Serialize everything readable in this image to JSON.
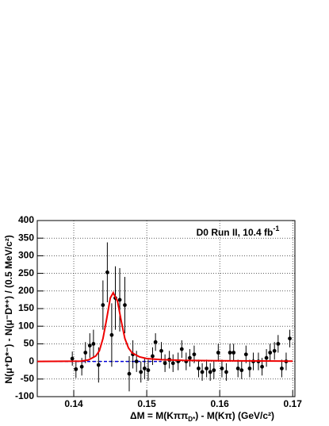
{
  "chart_data": {
    "type": "scatter",
    "annotation": "D0 Run II, 10.4 fb",
    "annotation_sup": "-1",
    "x_label": [
      "ΔM = M(Kππ",
      "D*",
      ") - M(Kπ)   (GeV/c²)"
    ],
    "y_label": "N(μ⁺D*⁻) - N(μ⁻D*⁺)  / (0.5 MeV/c²)",
    "xlim": [
      0.135,
      0.1703
    ],
    "ylim": [
      -100,
      400
    ],
    "xticks": [
      0.14,
      0.15,
      0.16,
      0.17
    ],
    "yticks": [
      -100,
      -50,
      0,
      50,
      100,
      150,
      200,
      250,
      300,
      350,
      400
    ],
    "grid": true,
    "series": [
      {
        "color": "#000000",
        "x": [
          0.1398,
          0.1403,
          0.1411,
          0.1416,
          0.1422,
          0.1427,
          0.1434,
          0.144,
          0.1446,
          0.1452,
          0.1457,
          0.1463,
          0.147,
          0.1476,
          0.1481,
          0.1486,
          0.1492,
          0.1497,
          0.1502,
          0.1508,
          0.1512,
          0.152,
          0.1525,
          0.1531,
          0.1536,
          0.1543,
          0.1548,
          0.1554,
          0.1559,
          0.1565,
          0.1571,
          0.1576,
          0.1582,
          0.1587,
          0.1592,
          0.1598,
          0.1603,
          0.1609,
          0.1614,
          0.1619,
          0.1625,
          0.163,
          0.1636,
          0.1641,
          0.1646,
          0.1653,
          0.1658,
          0.1664,
          0.1669,
          0.1675,
          0.168,
          0.1685,
          0.1691,
          0.1696
        ],
        "values": [
          8,
          -22,
          -15,
          25,
          45,
          50,
          -10,
          160,
          253,
          75,
          180,
          175,
          160,
          -35,
          20,
          0,
          -30,
          -20,
          -25,
          15,
          55,
          30,
          -5,
          5,
          -5,
          0,
          35,
          0,
          10,
          20,
          -20,
          -30,
          -20,
          -30,
          -25,
          25,
          -20,
          -30,
          25,
          25,
          -20,
          -25,
          20,
          -20,
          0,
          0,
          -15,
          10,
          25,
          30,
          50,
          -20,
          0,
          65
        ],
        "errors": [
          20,
          25,
          25,
          30,
          35,
          40,
          50,
          70,
          85,
          90,
          90,
          90,
          80,
          50,
          40,
          30,
          30,
          30,
          30,
          25,
          25,
          25,
          25,
          25,
          25,
          25,
          25,
          25,
          25,
          25,
          25,
          25,
          25,
          25,
          25,
          25,
          25,
          25,
          25,
          25,
          25,
          25,
          25,
          25,
          25,
          25,
          25,
          25,
          25,
          25,
          25,
          25,
          25,
          25
        ]
      },
      {
        "color": "#ee0000",
        "x": [
          0.135,
          0.141,
          0.142,
          0.143,
          0.1435,
          0.144,
          0.1445,
          0.145,
          0.1454,
          0.146,
          0.1465,
          0.147,
          0.1475,
          0.148,
          0.149,
          0.15,
          0.152,
          0.155,
          0.16,
          0.17
        ],
        "values": [
          0,
          1,
          4,
          15,
          30,
          65,
          120,
          180,
          195,
          170,
          115,
          65,
          38,
          24,
          13,
          8,
          5,
          3,
          2,
          1
        ]
      },
      {
        "color": "#0000dd",
        "x": [
          0.135,
          0.152
        ],
        "values": [
          0,
          0
        ]
      }
    ]
  }
}
